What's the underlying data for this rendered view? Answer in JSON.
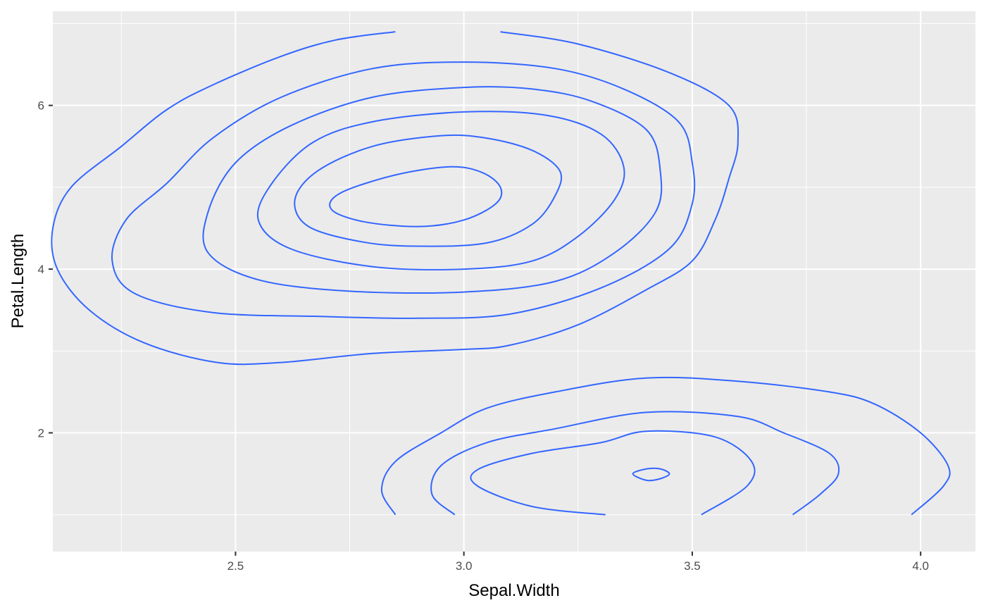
{
  "chart_data": {
    "type": "line",
    "subtype": "density-contour",
    "title": "",
    "xlabel": "Sepal.Width",
    "ylabel": "Petal.Length",
    "xlim": [
      2.1,
      4.12
    ],
    "ylim": [
      0.55,
      7.15
    ],
    "x_ticks": [
      {
        "value": 2.5,
        "label": "2.5"
      },
      {
        "value": 3.0,
        "label": "3.0"
      },
      {
        "value": 3.5,
        "label": "3.5"
      },
      {
        "value": 4.0,
        "label": "4.0"
      }
    ],
    "y_ticks": [
      {
        "value": 2,
        "label": "2"
      },
      {
        "value": 4,
        "label": "4"
      },
      {
        "value": 6,
        "label": "6"
      }
    ],
    "x_minor": [
      2.25,
      2.75,
      3.25,
      3.75
    ],
    "y_minor": [
      1,
      3,
      5,
      7
    ],
    "grid": true,
    "colors": {
      "panel": "#EBEBEB",
      "grid": "#FFFFFF",
      "contour": "#3366FF"
    },
    "contours": [
      {
        "points": [
          [
            2.85,
            6.9
          ],
          [
            2.72,
            6.8
          ],
          [
            2.6,
            6.6
          ],
          [
            2.45,
            6.25
          ],
          [
            2.35,
            5.95
          ],
          [
            2.25,
            5.5
          ],
          [
            2.14,
            5.0
          ],
          [
            2.1,
            4.5
          ],
          [
            2.11,
            4.0
          ],
          [
            2.18,
            3.5
          ],
          [
            2.3,
            3.1
          ],
          [
            2.46,
            2.86
          ],
          [
            2.6,
            2.86
          ],
          [
            2.8,
            2.97
          ],
          [
            3.0,
            3.02
          ],
          [
            3.1,
            3.07
          ],
          [
            3.25,
            3.32
          ],
          [
            3.4,
            3.75
          ],
          [
            3.5,
            4.1
          ],
          [
            3.55,
            4.6
          ],
          [
            3.58,
            5.1
          ],
          [
            3.6,
            5.55
          ],
          [
            3.58,
            6.0
          ],
          [
            3.45,
            6.4
          ],
          [
            3.25,
            6.75
          ],
          [
            3.08,
            6.9
          ]
        ],
        "closed": false
      },
      {
        "points": [
          [
            3.0,
            6.53
          ],
          [
            2.8,
            6.45
          ],
          [
            2.6,
            6.1
          ],
          [
            2.45,
            5.6
          ],
          [
            2.35,
            5.05
          ],
          [
            2.26,
            4.6
          ],
          [
            2.23,
            4.1
          ],
          [
            2.28,
            3.7
          ],
          [
            2.45,
            3.47
          ],
          [
            2.7,
            3.42
          ],
          [
            2.9,
            3.4
          ],
          [
            3.1,
            3.45
          ],
          [
            3.3,
            3.77
          ],
          [
            3.45,
            4.25
          ],
          [
            3.5,
            4.8
          ],
          [
            3.5,
            5.3
          ],
          [
            3.47,
            5.8
          ],
          [
            3.35,
            6.2
          ],
          [
            3.2,
            6.45
          ]
        ],
        "closed": true
      },
      {
        "points": [
          [
            3.0,
            6.22
          ],
          [
            2.8,
            6.1
          ],
          [
            2.62,
            5.75
          ],
          [
            2.5,
            5.3
          ],
          [
            2.44,
            4.7
          ],
          [
            2.44,
            4.2
          ],
          [
            2.55,
            3.87
          ],
          [
            2.75,
            3.73
          ],
          [
            3.0,
            3.72
          ],
          [
            3.2,
            3.85
          ],
          [
            3.33,
            4.2
          ],
          [
            3.42,
            4.7
          ],
          [
            3.43,
            5.2
          ],
          [
            3.4,
            5.7
          ],
          [
            3.28,
            6.05
          ],
          [
            3.15,
            6.2
          ]
        ],
        "closed": true
      },
      {
        "points": [
          [
            3.0,
            5.92
          ],
          [
            2.8,
            5.8
          ],
          [
            2.67,
            5.55
          ],
          [
            2.58,
            5.05
          ],
          [
            2.55,
            4.6
          ],
          [
            2.62,
            4.25
          ],
          [
            2.8,
            4.03
          ],
          [
            3.0,
            4.0
          ],
          [
            3.15,
            4.1
          ],
          [
            3.25,
            4.4
          ],
          [
            3.33,
            4.85
          ],
          [
            3.35,
            5.25
          ],
          [
            3.3,
            5.65
          ],
          [
            3.18,
            5.88
          ]
        ],
        "closed": true
      },
      {
        "points": [
          [
            2.95,
            5.63
          ],
          [
            2.8,
            5.5
          ],
          [
            2.68,
            5.2
          ],
          [
            2.63,
            4.85
          ],
          [
            2.66,
            4.52
          ],
          [
            2.78,
            4.33
          ],
          [
            2.9,
            4.28
          ],
          [
            3.05,
            4.32
          ],
          [
            3.15,
            4.55
          ],
          [
            3.2,
            4.9
          ],
          [
            3.21,
            5.2
          ],
          [
            3.15,
            5.45
          ],
          [
            3.05,
            5.6
          ]
        ],
        "closed": true
      },
      {
        "points": [
          [
            2.97,
            5.25
          ],
          [
            2.85,
            5.15
          ],
          [
            2.73,
            4.93
          ],
          [
            2.71,
            4.73
          ],
          [
            2.78,
            4.58
          ],
          [
            2.9,
            4.52
          ],
          [
            3.0,
            4.6
          ],
          [
            3.07,
            4.8
          ],
          [
            3.08,
            5.0
          ],
          [
            3.04,
            5.18
          ]
        ],
        "closed": true
      },
      {
        "points": [
          [
            2.85,
            1.0
          ],
          [
            2.82,
            1.3
          ],
          [
            2.85,
            1.65
          ],
          [
            2.95,
            2.0
          ],
          [
            3.05,
            2.3
          ],
          [
            3.2,
            2.5
          ],
          [
            3.4,
            2.67
          ],
          [
            3.6,
            2.63
          ],
          [
            3.8,
            2.5
          ],
          [
            3.9,
            2.35
          ],
          [
            4.0,
            2.0
          ],
          [
            4.06,
            1.6
          ],
          [
            4.05,
            1.35
          ],
          [
            3.98,
            1.0
          ]
        ],
        "closed": false
      },
      {
        "points": [
          [
            2.98,
            1.0
          ],
          [
            2.93,
            1.25
          ],
          [
            2.95,
            1.6
          ],
          [
            3.05,
            1.88
          ],
          [
            3.2,
            2.05
          ],
          [
            3.4,
            2.25
          ],
          [
            3.6,
            2.2
          ],
          [
            3.7,
            2.0
          ],
          [
            3.8,
            1.75
          ],
          [
            3.82,
            1.5
          ],
          [
            3.78,
            1.25
          ],
          [
            3.72,
            1.0
          ]
        ],
        "closed": false
      },
      {
        "points": [
          [
            3.31,
            1.0
          ],
          [
            3.15,
            1.1
          ],
          [
            3.03,
            1.35
          ],
          [
            3.03,
            1.55
          ],
          [
            3.15,
            1.75
          ],
          [
            3.3,
            1.88
          ],
          [
            3.4,
            2.02
          ],
          [
            3.55,
            1.95
          ],
          [
            3.63,
            1.65
          ],
          [
            3.62,
            1.35
          ],
          [
            3.52,
            1.0
          ]
        ],
        "closed": false
      },
      {
        "points": [
          [
            3.4,
            1.56
          ],
          [
            3.37,
            1.5
          ],
          [
            3.4,
            1.42
          ],
          [
            3.43,
            1.44
          ],
          [
            3.45,
            1.5
          ],
          [
            3.43,
            1.56
          ]
        ],
        "closed": true
      }
    ]
  }
}
